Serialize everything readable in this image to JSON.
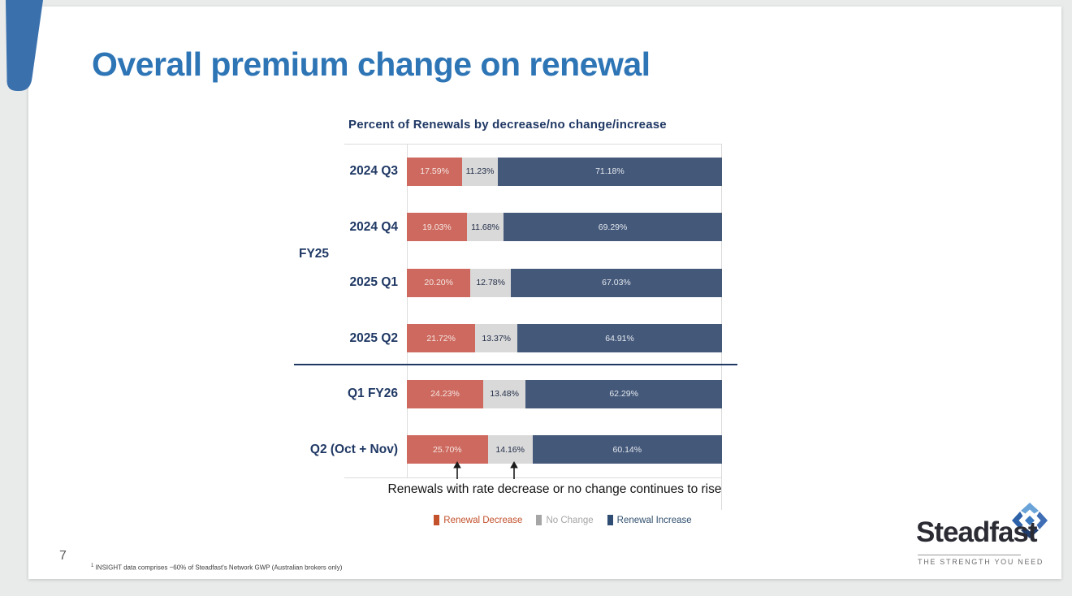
{
  "slide": {
    "title": "Overall premium change on renewal",
    "page_number": "7",
    "footnote_mark": "1",
    "footnote": "INSIGHT data comprises ~60% of Steadfast's Network GWP (Australian brokers only)"
  },
  "theme": {
    "title_blue": "#2e75b6",
    "navy": "#1f3864",
    "corner_shape_blue": "#3a71ad",
    "slide_background": "#ffffff",
    "page_background": "#e9ebeb"
  },
  "chart_data": {
    "type": "bar",
    "orientation": "horizontal",
    "stacked": true,
    "title": "Percent of Renewals by decrease/no change/increase",
    "categories": [
      "2024 Q3",
      "2024 Q4",
      "2025 Q1",
      "2025 Q2",
      "Q1 FY26",
      "Q2 (Oct + Nov)"
    ],
    "group_label": "FY25",
    "group_label_applies_to": [
      "2024 Q3",
      "2024 Q4",
      "2025 Q1",
      "2025 Q2"
    ],
    "value_suffix": "%",
    "xlim": [
      0,
      100
    ],
    "legend_position": "bottom",
    "annotation": "Renewals with rate decrease or no change continues to rise",
    "series": [
      {
        "name": "Renewal Decrease",
        "color": "#cd695e",
        "label_color": "#f6e7e4",
        "legend_color": "#c2512c",
        "legend_text_color": "#c2512c",
        "values": [
          17.59,
          19.03,
          20.2,
          21.72,
          24.23,
          25.7
        ]
      },
      {
        "name": "No Change",
        "color": "#d9d9d9",
        "label_color": "#1f2b45",
        "legend_color": "#a6a6a6",
        "legend_text_color": "#a6a6a6",
        "values": [
          11.23,
          11.68,
          12.78,
          13.37,
          13.48,
          14.16
        ]
      },
      {
        "name": "Renewal Increase",
        "color": "#44587a",
        "label_color": "#e4e8ee",
        "legend_color": "#2f4d73",
        "legend_text_color": "#31506f",
        "values": [
          71.18,
          69.29,
          67.03,
          64.91,
          62.29,
          60.14
        ]
      }
    ]
  },
  "logo": {
    "name": "Steadfast",
    "tagline": "THE STRENGTH YOU NEED"
  }
}
